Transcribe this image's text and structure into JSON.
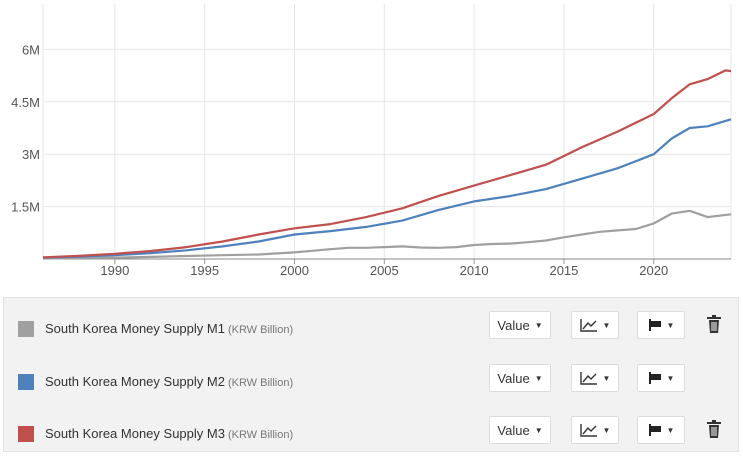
{
  "chart_data": {
    "type": "line",
    "x_ticks": [
      1990,
      1995,
      2000,
      2005,
      2010,
      2015,
      2020
    ],
    "y_ticks": [
      1500000,
      3000000,
      4500000,
      6000000
    ],
    "y_tick_labels": [
      "1.5M",
      "3M",
      "4.5M",
      "6M"
    ],
    "xlim": [
      1986,
      2024.3
    ],
    "ylim": [
      0,
      7300000
    ],
    "grid": true,
    "series": [
      {
        "name": "South Korea Money Supply M1",
        "color": "#a0a0a0",
        "x": [
          1986,
          1988,
          1990,
          1992,
          1994,
          1996,
          1998,
          2000,
          2002,
          2003,
          2004,
          2005,
          2006,
          2007,
          2008,
          2009,
          2010,
          2011,
          2012,
          2013,
          2014,
          2015,
          2016,
          2017,
          2018,
          2019,
          2020,
          2021,
          2022,
          2023,
          2024.3
        ],
        "values": [
          15000,
          25000,
          40000,
          60000,
          85000,
          110000,
          130000,
          190000,
          280000,
          320000,
          320000,
          340000,
          360000,
          330000,
          320000,
          340000,
          400000,
          430000,
          440000,
          480000,
          530000,
          620000,
          700000,
          780000,
          820000,
          860000,
          1020000,
          1300000,
          1380000,
          1200000,
          1280000
        ]
      },
      {
        "name": "South Korea Money Supply M2",
        "color": "#4f81bd",
        "x": [
          1986,
          1988,
          1990,
          1992,
          1994,
          1996,
          1998,
          2000,
          2002,
          2004,
          2006,
          2008,
          2010,
          2012,
          2014,
          2016,
          2018,
          2020,
          2021,
          2022,
          2023,
          2024.3
        ],
        "values": [
          40000,
          70000,
          110000,
          170000,
          250000,
          360000,
          500000,
          700000,
          800000,
          920000,
          1100000,
          1400000,
          1650000,
          1800000,
          2000000,
          2300000,
          2600000,
          3000000,
          3450000,
          3750000,
          3800000,
          4000000
        ]
      },
      {
        "name": "South Korea Money Supply M3",
        "color": "#c0504d",
        "x": [
          1986,
          1988,
          1990,
          1992,
          1994,
          1996,
          1998,
          2000,
          2002,
          2004,
          2006,
          2008,
          2010,
          2012,
          2014,
          2016,
          2018,
          2020,
          2021,
          2022,
          2023,
          2024,
          2024.3
        ],
        "values": [
          50000,
          90000,
          150000,
          230000,
          340000,
          500000,
          700000,
          880000,
          1000000,
          1200000,
          1450000,
          1800000,
          2100000,
          2400000,
          2700000,
          3200000,
          3650000,
          4150000,
          4600000,
          5000000,
          5150000,
          5400000,
          5380000
        ]
      }
    ]
  },
  "legend": [
    {
      "name": "South Korea Money Supply M1",
      "unit": "(KRW Billion)",
      "color": "#a0a0a0",
      "value_label": "Value",
      "has_delete": true
    },
    {
      "name": "South Korea Money Supply M2",
      "unit": "(KRW Billion)",
      "color": "#4f81bd",
      "value_label": "Value",
      "has_delete": false
    },
    {
      "name": "South Korea Money Supply M3",
      "unit": "(KRW Billion)",
      "color": "#c0504d",
      "value_label": "Value",
      "has_delete": true
    }
  ],
  "icons": {
    "chart_type": "line-chart-icon",
    "flag": "flag-icon",
    "delete": "trash-icon",
    "caret": "caret-down-icon"
  }
}
